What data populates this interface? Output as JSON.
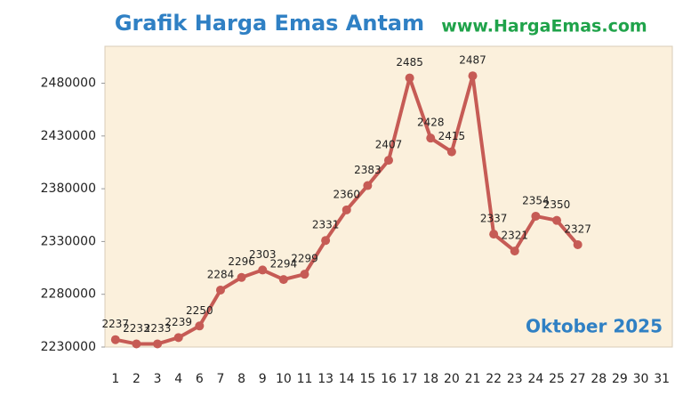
{
  "chart_data": {
    "type": "line",
    "title": "Grafik Harga Emas Antam",
    "subtitle": "www.HargaEmas.com",
    "annotation": "Oktober 2025",
    "categories": [
      "1",
      "2",
      "3",
      "4",
      "6",
      "7",
      "8",
      "9",
      "10",
      "11",
      "13",
      "14",
      "15",
      "16",
      "17",
      "18",
      "20",
      "21",
      "22",
      "23",
      "24",
      "25",
      "27",
      "28",
      "29",
      "30",
      "31"
    ],
    "series": [
      {
        "name": "Harga Emas",
        "color": "#c65b55",
        "values": [
          2237000,
          2233000,
          2233000,
          2239000,
          2250000,
          2284000,
          2296000,
          2303000,
          2294000,
          2299000,
          2331000,
          2360000,
          2383000,
          2407000,
          2485000,
          2428000,
          2415000,
          2487000,
          2337000,
          2321000,
          2354000,
          2350000,
          2327000,
          null,
          null,
          null,
          null
        ],
        "value_labels": [
          "2237",
          "2233",
          "2233",
          "2239",
          "2250",
          "2284",
          "2296",
          "2303",
          "2294",
          "2299",
          "2331",
          "2360",
          "2383",
          "2407",
          "2485",
          "2428",
          "2415",
          "2487",
          "2337",
          "2321",
          "2354",
          "2350",
          "2327",
          null,
          null,
          null,
          null
        ]
      }
    ],
    "ylim": [
      2230000,
      2515000
    ],
    "yticks": [
      2230000,
      2280000,
      2330000,
      2380000,
      2430000,
      2480000
    ],
    "background": "#fbf0dc"
  }
}
